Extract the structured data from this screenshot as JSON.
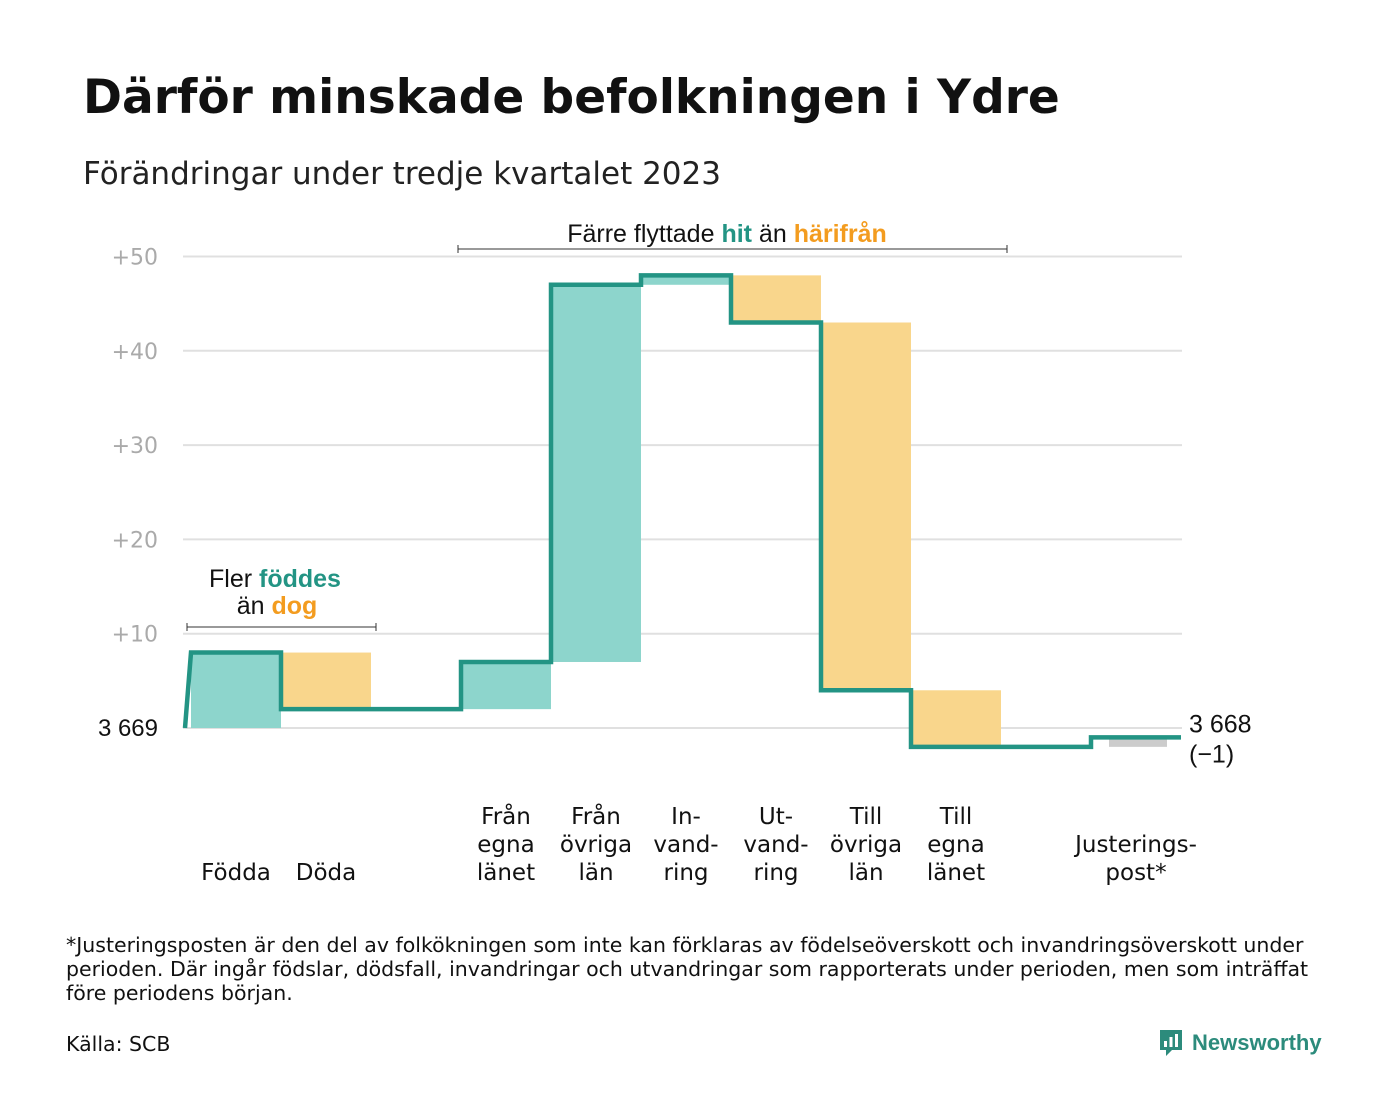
{
  "title": "Därför minskade befolkningen i Ydre",
  "subtitle": "Förändringar under tredje kvartalet 2023",
  "colors": {
    "positive": "#8dd5cc",
    "negative": "#f9d68c",
    "adjustment": "#cccccc",
    "line": "#239484",
    "hit": "#239484",
    "harifran": "#f39c1f",
    "grid": "#e0e0e0"
  },
  "annotations": {
    "top": {
      "pre": "Färre flyttade ",
      "hit": "hit",
      "mid": " än ",
      "harifran": "härifrån"
    },
    "birth_line1": {
      "pre": "Fler ",
      "hit": "föddes"
    },
    "birth_line2": {
      "pre": "än ",
      "harifran": "dog"
    }
  },
  "chart_data": {
    "type": "waterfall",
    "start_value": 3669,
    "start_label": "3  669",
    "end_value": 3668,
    "end_label": "3 668",
    "end_change_label": "(−1)",
    "ylim": [
      -2,
      51
    ],
    "yticks": [
      10,
      20,
      30,
      40,
      50
    ],
    "ytick_labels": [
      "+10",
      "+20",
      "+30",
      "+40",
      "+50"
    ],
    "grid": true,
    "steps": [
      {
        "label": [
          "Födda"
        ],
        "value": 8,
        "kind": "positive"
      },
      {
        "label": [
          "Döda"
        ],
        "value": -6,
        "kind": "negative"
      },
      {
        "label": [],
        "value": 0,
        "kind": "gap"
      },
      {
        "label": [
          "Från",
          "egna",
          "länet"
        ],
        "value": 5,
        "kind": "positive"
      },
      {
        "label": [
          "Från",
          "övriga",
          "län"
        ],
        "value": 40,
        "kind": "positive"
      },
      {
        "label": [
          "In-",
          "vand-",
          "ring"
        ],
        "value": 1,
        "kind": "positive"
      },
      {
        "label": [
          "Ut-",
          "vand-",
          "ring"
        ],
        "value": -5,
        "kind": "negative"
      },
      {
        "label": [
          "Till",
          "övriga",
          "län"
        ],
        "value": -39,
        "kind": "negative"
      },
      {
        "label": [
          "Till",
          "egna",
          "länet"
        ],
        "value": -6,
        "kind": "negative"
      },
      {
        "label": [],
        "value": 0,
        "kind": "gap"
      },
      {
        "label": [
          "Justerings-",
          "post*"
        ],
        "value": 1,
        "kind": "adjustment"
      }
    ]
  },
  "footnote": "*Justeringsposten är den del av folkökningen som inte kan förklaras av födelseöverskott och invandringsöverskott under perioden. Där ingår födslar, dödsfall, invandringar och utvandringar som rapporterats under perioden, men som inträffat före periodens början.",
  "source": "Källa: SCB",
  "brand": "Newsworthy"
}
